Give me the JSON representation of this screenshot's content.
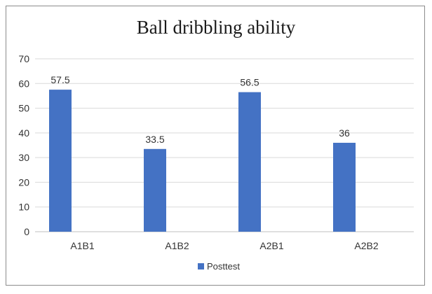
{
  "chart_data": {
    "type": "bar",
    "title": "Ball dribbling ability",
    "categories": [
      "A1B1",
      "A1B2",
      "A2B1",
      "A2B2"
    ],
    "series": [
      {
        "name": "Posttest",
        "values": [
          57.5,
          33.5,
          56.5,
          36
        ],
        "color": "#4472c4"
      }
    ],
    "data_labels": [
      "57.5",
      "33.5",
      "56.5",
      "36"
    ],
    "yticks": [
      "0",
      "10",
      "20",
      "30",
      "40",
      "50",
      "60",
      "70"
    ],
    "ylim": [
      0,
      70
    ],
    "xlabel": "",
    "ylabel": "",
    "grid": true,
    "legend_position": "bottom"
  }
}
